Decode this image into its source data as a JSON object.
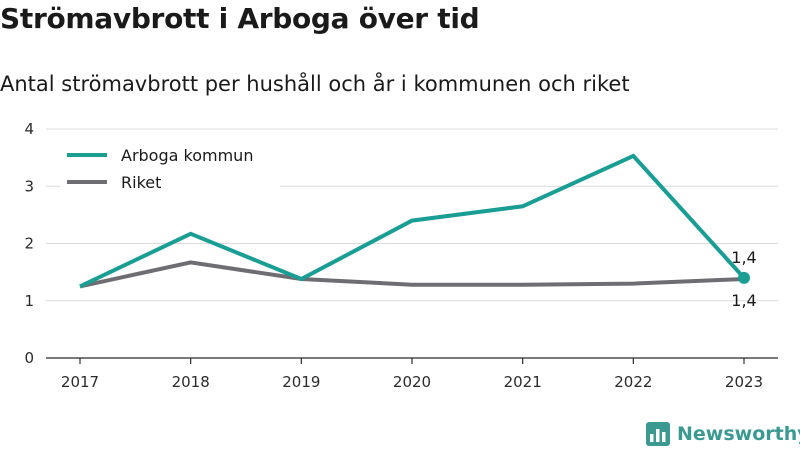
{
  "title": "Strömavbrott i Arboga över tid",
  "subtitle": "Antal strömavbrott per hushåll och år i kommunen och riket",
  "brand": {
    "name": "Newsworthy",
    "icon": "bar-chart-logo-icon",
    "color": "#3a9a91"
  },
  "chart_data": {
    "type": "line",
    "x": [
      "2017",
      "2018",
      "2019",
      "2020",
      "2021",
      "2022",
      "2023"
    ],
    "ylim": [
      0,
      4
    ],
    "yticks": [
      "0",
      "1",
      "2",
      "3",
      "4"
    ],
    "grid": true,
    "legend_position": "top-left",
    "xlabel": "",
    "ylabel": "",
    "series": [
      {
        "name": "Arboga kommun",
        "color": "#1a9e94",
        "values": [
          1.25,
          2.17,
          1.38,
          2.4,
          2.65,
          3.53,
          1.4
        ],
        "end_label": "1,4"
      },
      {
        "name": "Riket",
        "color": "#6e6d72",
        "values": [
          1.25,
          1.67,
          1.38,
          1.28,
          1.28,
          1.3,
          1.38
        ],
        "end_label": "1,4"
      }
    ]
  }
}
